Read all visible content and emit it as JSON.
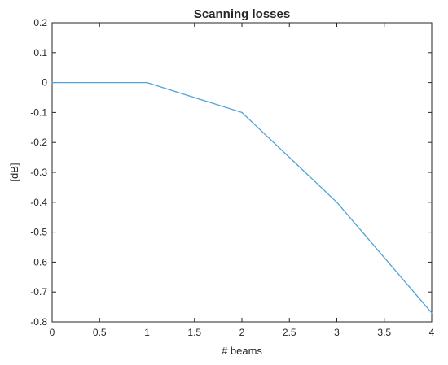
{
  "chart_data": {
    "type": "line",
    "title": "Scanning losses",
    "xlabel": "# beams",
    "ylabel": "[dB]",
    "xlim": [
      0,
      4
    ],
    "ylim": [
      -0.8,
      0.2
    ],
    "x_ticks": [
      "0",
      "0.5",
      "1",
      "1.5",
      "2",
      "2.5",
      "3",
      "3.5",
      "4"
    ],
    "y_ticks": [
      "0.2",
      "0.1",
      "0",
      "-0.1",
      "-0.2",
      "-0.3",
      "-0.4",
      "-0.5",
      "-0.6",
      "-0.7",
      "-0.8"
    ],
    "grid": false,
    "series": [
      {
        "x": [
          0,
          1,
          2,
          3,
          4
        ],
        "values": [
          0,
          0,
          -0.1,
          -0.4,
          -0.77
        ],
        "color": "#4fa3d8"
      }
    ]
  }
}
